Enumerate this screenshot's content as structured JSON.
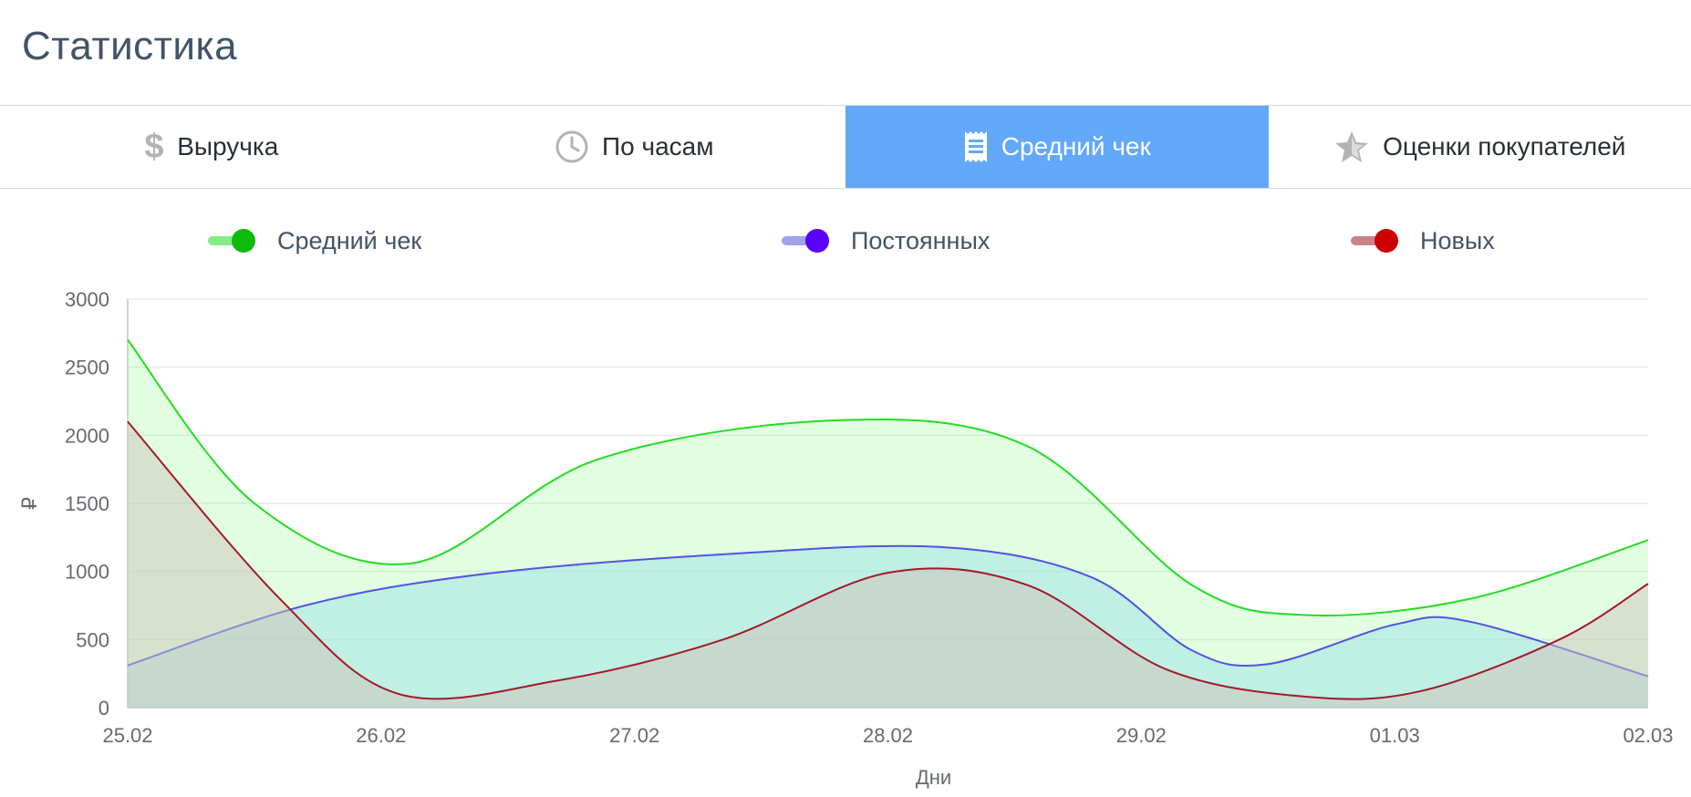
{
  "page": {
    "title": "Статистика"
  },
  "tabs": [
    {
      "label": "Выручка",
      "icon": "dollar-icon",
      "active": false
    },
    {
      "label": "По часам",
      "icon": "clock-icon",
      "active": false
    },
    {
      "label": "Средний чек",
      "icon": "receipt-icon",
      "active": true
    },
    {
      "label": "Оценки покупателей",
      "icon": "star-icon",
      "active": false
    }
  ],
  "colors": {
    "accent": "#63a8f9",
    "title": "#415469"
  },
  "chart_data": {
    "type": "area",
    "categories": [
      "25.02",
      "26.02",
      "27.02",
      "28.02",
      "29.02",
      "01.03",
      "02.03"
    ],
    "xlabel": "Дни",
    "ylabel": "₽",
    "ylim": [
      0,
      3000
    ],
    "yticks": [
      "0",
      "500",
      "1000",
      "1500",
      "2000",
      "2500",
      "3000"
    ],
    "grid": true,
    "legend_position": "top",
    "series": [
      {
        "name": "Средний чек",
        "color": "#22dd22",
        "dot_color": "#0dbb0d",
        "fill": "rgba(150,255,150,0.28)",
        "x": [
          0,
          0.5,
          1.12,
          1.85,
          2.8,
          3.55,
          4.2,
          4.65,
          5.3,
          6.0
        ],
        "values": [
          2700,
          1500,
          1060,
          1820,
          2110,
          1920,
          900,
          680,
          800,
          1230
        ]
      },
      {
        "name": "Постоянных",
        "color": "#4f53e0",
        "dot_color": "#5a00ff",
        "fill": "rgba(150,220,230,0.45)",
        "x": [
          0,
          0.7,
          1.4,
          2.3,
          3.2,
          3.8,
          4.2,
          4.5,
          5.0,
          5.3,
          6.0
        ],
        "values": [
          310,
          750,
          980,
          1120,
          1180,
          960,
          420,
          320,
          610,
          630,
          230
        ]
      },
      {
        "name": "Новых",
        "color": "#a31a2a",
        "dot_color": "#cc0000",
        "fill": "rgba(205,195,185,0.5)",
        "x": [
          0,
          0.6,
          1.07,
          1.7,
          2.35,
          3.0,
          3.55,
          4.1,
          4.65,
          5.1,
          5.65,
          6.0
        ],
        "values": [
          2100,
          800,
          100,
          200,
          500,
          990,
          900,
          280,
          80,
          120,
          500,
          910
        ]
      }
    ]
  }
}
